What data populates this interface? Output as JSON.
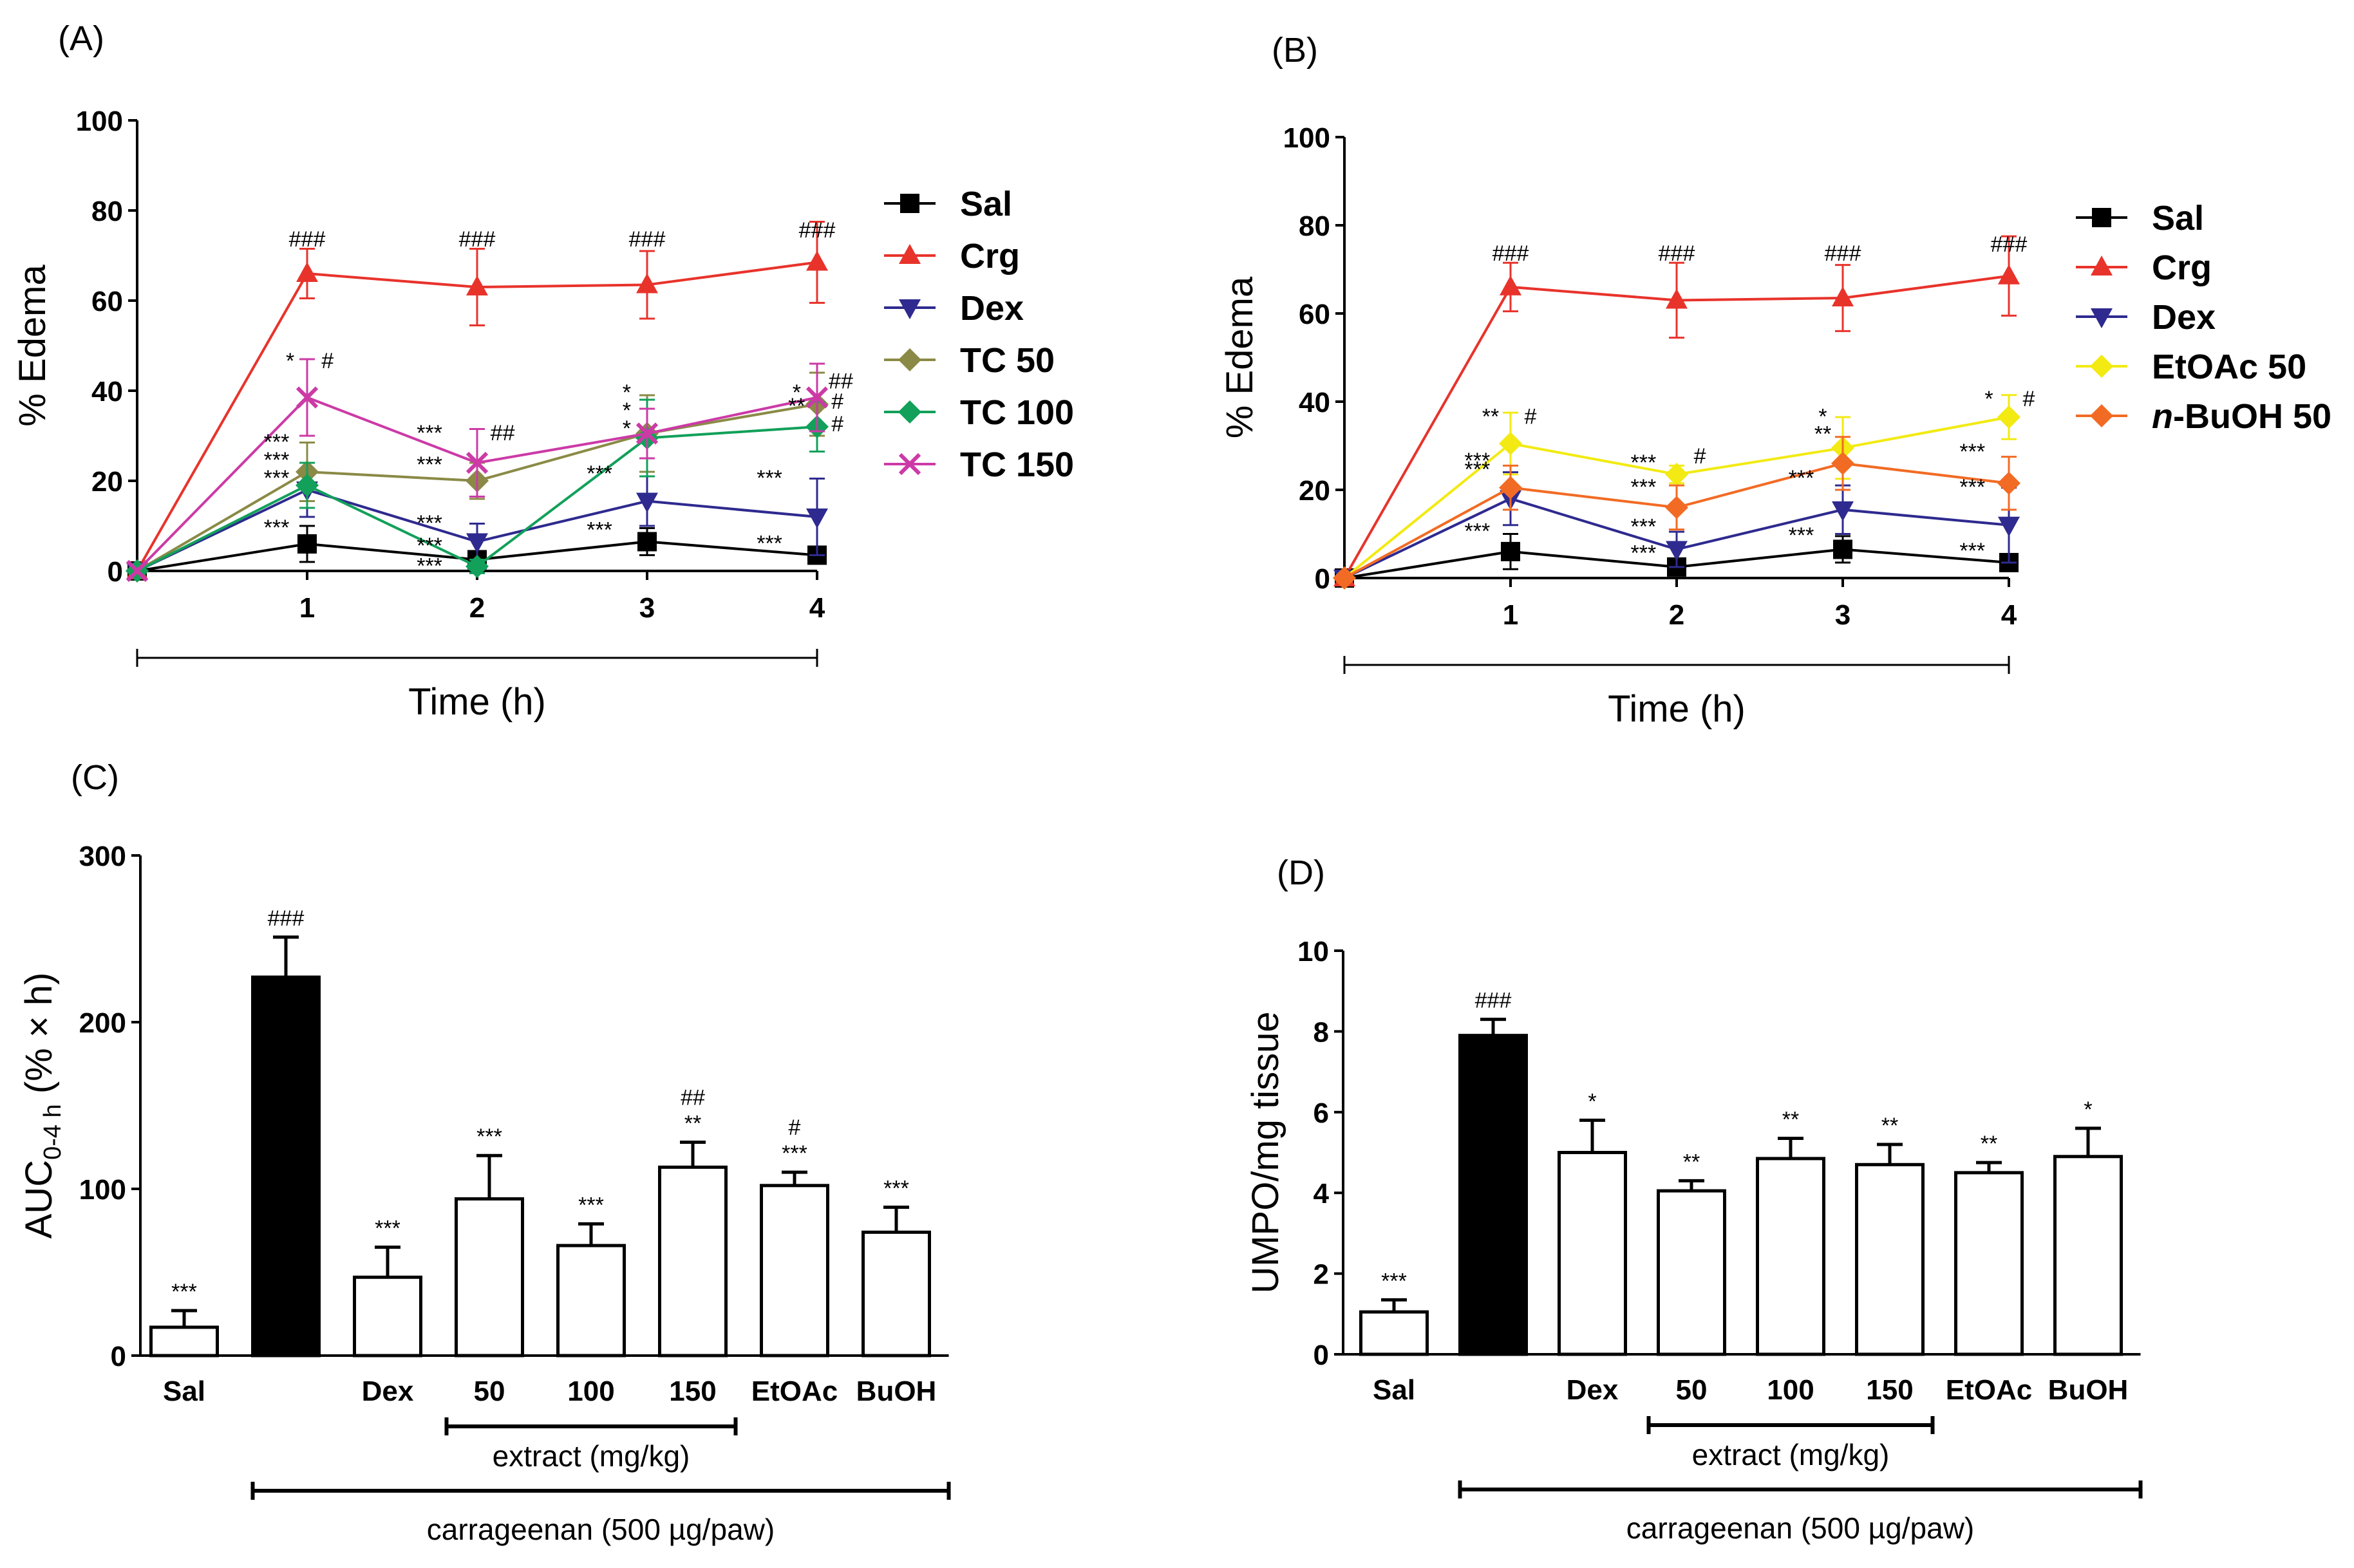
{
  "colors": {
    "Sal": "#000000",
    "Crg": "#e8332b",
    "Dex": "#2e2a8f",
    "TC 50": "#8a8a46",
    "TC 100": "#12a05a",
    "TC 150": "#cc3aa6",
    "EtOAc 50": "#f2ea12",
    "n-BuOH 50": "#f26b24"
  },
  "chart_data": [
    {
      "id": "A",
      "type": "line",
      "panel_label": "(A)",
      "x": [
        0,
        1,
        2,
        3,
        4
      ],
      "xticks": [
        "1",
        "2",
        "3",
        "4"
      ],
      "xlabel": "Time (h)",
      "ylabel": "% Edema",
      "ylim": [
        0,
        100
      ],
      "yticks": [
        "0",
        "20",
        "40",
        "60",
        "80",
        "100"
      ],
      "legend": "right",
      "series": [
        {
          "name": "Sal",
          "marker": "square",
          "values": [
            0,
            6,
            2.5,
            6.5,
            3.5
          ],
          "err": [
            0,
            4,
            1.5,
            3,
            1.5
          ]
        },
        {
          "name": "Crg",
          "marker": "triangle-up",
          "values": [
            0,
            66,
            63,
            63.5,
            68.5
          ],
          "err": [
            0,
            5.5,
            8.5,
            7.5,
            9
          ]
        },
        {
          "name": "Dex",
          "marker": "triangle-down",
          "values": [
            0,
            18,
            6.5,
            15.5,
            12
          ],
          "err": [
            0,
            6,
            4,
            5.5,
            8.5
          ]
        },
        {
          "name": "TC 50",
          "marker": "diamond",
          "values": [
            0,
            22,
            20,
            30.5,
            37
          ],
          "err": [
            0,
            6.5,
            4,
            8.5,
            7
          ]
        },
        {
          "name": "TC 100",
          "marker": "diamond",
          "values": [
            0,
            19,
            1,
            29.5,
            32
          ],
          "err": [
            0,
            5,
            1.5,
            8.5,
            5.5
          ]
        },
        {
          "name": "TC 150",
          "marker": "x",
          "values": [
            0,
            38.5,
            24,
            30.5,
            38.5
          ],
          "err": [
            0,
            8.5,
            7.5,
            5.5,
            7.5
          ]
        }
      ],
      "annotations": [
        {
          "x": 1,
          "v": 72,
          "t": "###"
        },
        {
          "x": 2,
          "v": 72,
          "t": "###"
        },
        {
          "x": 3,
          "v": 72,
          "t": "###"
        },
        {
          "x": 4,
          "v": 74,
          "t": "###"
        },
        {
          "x": 0.9,
          "v": 45,
          "t": "*"
        },
        {
          "x": 1.12,
          "v": 45,
          "t": "#"
        },
        {
          "x": 0.82,
          "v": 27,
          "t": "***"
        },
        {
          "x": 0.82,
          "v": 23,
          "t": "***"
        },
        {
          "x": 0.82,
          "v": 19,
          "t": "***"
        },
        {
          "x": 0.82,
          "v": 8,
          "t": "***"
        },
        {
          "x": 1.72,
          "v": 29,
          "t": "***"
        },
        {
          "x": 2.15,
          "v": 29,
          "t": "##"
        },
        {
          "x": 1.72,
          "v": 22,
          "t": "***"
        },
        {
          "x": 1.72,
          "v": 9,
          "t": "***"
        },
        {
          "x": 1.72,
          "v": 4,
          "t": "***"
        },
        {
          "x": 1.72,
          "v": -0.5,
          "t": "***"
        },
        {
          "x": 2.88,
          "v": 38,
          "t": "*"
        },
        {
          "x": 2.88,
          "v": 34,
          "t": "*"
        },
        {
          "x": 2.88,
          "v": 30,
          "t": "*"
        },
        {
          "x": 2.72,
          "v": 20,
          "t": "***"
        },
        {
          "x": 2.72,
          "v": 7.5,
          "t": "***"
        },
        {
          "x": 3.88,
          "v": 38,
          "t": "*"
        },
        {
          "x": 4.14,
          "v": 40.5,
          "t": "##"
        },
        {
          "x": 3.88,
          "v": 35,
          "t": "**"
        },
        {
          "x": 4.12,
          "v": 36,
          "t": "#"
        },
        {
          "x": 4.12,
          "v": 31,
          "t": "#"
        },
        {
          "x": 3.72,
          "v": 19,
          "t": "***"
        },
        {
          "x": 3.72,
          "v": 4.5,
          "t": "***"
        }
      ]
    },
    {
      "id": "B",
      "type": "line",
      "panel_label": "(B)",
      "x": [
        0,
        1,
        2,
        3,
        4
      ],
      "xticks": [
        "1",
        "2",
        "3",
        "4"
      ],
      "xlabel": "Time (h)",
      "ylabel": "% Edema",
      "ylim": [
        0,
        100
      ],
      "yticks": [
        "0",
        "20",
        "40",
        "60",
        "80",
        "100"
      ],
      "legend": "right",
      "series": [
        {
          "name": "Sal",
          "marker": "square",
          "values": [
            0,
            6,
            2.5,
            6.5,
            3.5
          ],
          "err": [
            0,
            4,
            1.5,
            3,
            1.5
          ]
        },
        {
          "name": "Crg",
          "marker": "triangle-up",
          "values": [
            0,
            66,
            63,
            63.5,
            68.5
          ],
          "err": [
            0,
            5.5,
            8.5,
            7.5,
            9
          ]
        },
        {
          "name": "Dex",
          "marker": "triangle-down",
          "values": [
            0,
            18,
            6.5,
            15.5,
            12
          ],
          "err": [
            0,
            6,
            4,
            5.5,
            8.5
          ]
        },
        {
          "name": "EtOAc 50",
          "marker": "diamond",
          "values": [
            0,
            30.5,
            23.5,
            29.5,
            36.5
          ],
          "err": [
            0,
            7,
            2,
            7,
            5
          ]
        },
        {
          "name": "n-BuOH 50",
          "marker": "diamond",
          "values": [
            0,
            20.5,
            16,
            26,
            21.5
          ],
          "err": [
            0,
            5,
            5,
            6,
            6
          ]
        }
      ],
      "annotations": [
        {
          "x": 1,
          "v": 72,
          "t": "###"
        },
        {
          "x": 2,
          "v": 72,
          "t": "###"
        },
        {
          "x": 3,
          "v": 72,
          "t": "###"
        },
        {
          "x": 4,
          "v": 74,
          "t": "###"
        },
        {
          "x": 0.88,
          "v": 35,
          "t": "**"
        },
        {
          "x": 1.12,
          "v": 35,
          "t": "#"
        },
        {
          "x": 0.8,
          "v": 25,
          "t": "***"
        },
        {
          "x": 0.8,
          "v": 23,
          "t": "***"
        },
        {
          "x": 0.8,
          "v": 9,
          "t": "***"
        },
        {
          "x": 1.8,
          "v": 24.5,
          "t": "***"
        },
        {
          "x": 2.14,
          "v": 26,
          "t": "#"
        },
        {
          "x": 1.8,
          "v": 19,
          "t": "***"
        },
        {
          "x": 1.8,
          "v": 10,
          "t": "***"
        },
        {
          "x": 1.8,
          "v": 4,
          "t": "***"
        },
        {
          "x": 2.88,
          "v": 35,
          "t": "*"
        },
        {
          "x": 2.88,
          "v": 31,
          "t": "**"
        },
        {
          "x": 2.75,
          "v": 21,
          "t": "***"
        },
        {
          "x": 2.75,
          "v": 8,
          "t": "***"
        },
        {
          "x": 3.88,
          "v": 39,
          "t": "*"
        },
        {
          "x": 4.12,
          "v": 39,
          "t": "#"
        },
        {
          "x": 3.78,
          "v": 27,
          "t": "***"
        },
        {
          "x": 3.78,
          "v": 19,
          "t": "***"
        },
        {
          "x": 3.78,
          "v": 4.5,
          "t": "***"
        }
      ]
    },
    {
      "id": "C",
      "type": "bar",
      "panel_label": "(C)",
      "categories": [
        "Sal",
        "",
        "Dex",
        "50",
        "100",
        "150",
        "EtOAc",
        "BuOH"
      ],
      "values": [
        17,
        227,
        47,
        94,
        66,
        113,
        102,
        74
      ],
      "err": [
        10,
        24,
        18,
        26,
        13,
        15,
        8,
        15
      ],
      "fill": [
        "white",
        "black",
        "white",
        "white",
        "white",
        "white",
        "white",
        "white"
      ],
      "ylim": [
        0,
        300
      ],
      "yticks": [
        "0",
        "100",
        "200",
        "300"
      ],
      "ylabel_main": "AUC",
      "ylabel_sub": "0-4 h",
      "ylabel_rest": " (% × h)",
      "labels_above": [
        [
          "***"
        ],
        [
          "###"
        ],
        [
          "***"
        ],
        [
          "***"
        ],
        [
          "***"
        ],
        [
          "##",
          "**"
        ],
        [
          "#",
          "***"
        ],
        [
          "***"
        ]
      ],
      "bracket_inner": "extract (mg/kg)",
      "bracket_outer": "carrageenan (500 µg/paw)"
    },
    {
      "id": "D",
      "type": "bar",
      "panel_label": "(D)",
      "categories": [
        "Sal",
        "",
        "Dex",
        "50",
        "100",
        "150",
        "EtOAc",
        "BuOH"
      ],
      "values": [
        1.05,
        7.9,
        5.0,
        4.05,
        4.85,
        4.7,
        4.5,
        4.9
      ],
      "err": [
        0.3,
        0.4,
        0.8,
        0.25,
        0.5,
        0.5,
        0.25,
        0.7
      ],
      "fill": [
        "white",
        "black",
        "white",
        "white",
        "white",
        "white",
        "white",
        "white"
      ],
      "ylim": [
        0,
        10
      ],
      "yticks": [
        "0",
        "2",
        "4",
        "6",
        "8",
        "10"
      ],
      "ylabel": "UMPO/mg tissue",
      "labels_above": [
        [
          "***"
        ],
        [
          "###"
        ],
        [
          "*"
        ],
        [
          "**"
        ],
        [
          "**"
        ],
        [
          "**"
        ],
        [
          "**"
        ],
        [
          "*"
        ]
      ],
      "bracket_inner": "extract (mg/kg)",
      "bracket_outer": "carrageenan (500 µg/paw)"
    }
  ]
}
